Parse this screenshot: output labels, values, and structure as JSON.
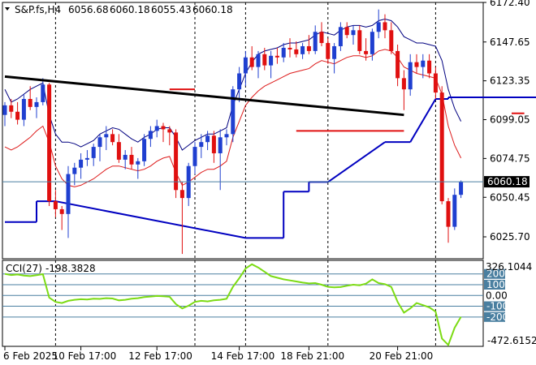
{
  "header": {
    "symbol": "S&P.fs,H4",
    "open": "6056.68",
    "high": "6060.18",
    "low": "6055.43",
    "close": "6060.18"
  },
  "indicator": {
    "name": "CCI(27)",
    "value": "-198.3828",
    "scale_max": "326.1044",
    "scale_min": "-472.6152",
    "levels": [
      "200",
      "100",
      "0.00",
      "-100",
      "-200"
    ]
  },
  "current_price_label": "6060.18",
  "colors": {
    "bull": "#1f3fd0",
    "bear": "#e01010",
    "band_upper": "#000080",
    "band_lower": "#dd1a1a",
    "trendline": "#000000",
    "support": "#0000c0",
    "cci_line": "#7cdb14",
    "cci_levels": "#4a7fa0"
  },
  "chart_data": {
    "type": "candlestick",
    "timeframe": "H4",
    "ylim": [
      6012,
      6172.4
    ],
    "y_ticks": [
      "6172.40",
      "6147.65",
      "6123.35",
      "6099.05",
      "6074.75",
      "6050.45",
      "6025.70"
    ],
    "x_tick_labels": [
      "6 Feb 2025",
      "10 Feb 17:00",
      "12 Feb 17:00",
      "14 Feb 17:00",
      "18 Feb 21:00",
      "20 Feb 21:00"
    ],
    "candles": [
      [
        6102,
        6110,
        6095,
        6108
      ],
      [
        6108,
        6112,
        6100,
        6104
      ],
      [
        6104,
        6110,
        6096,
        6099
      ],
      [
        6099,
        6115,
        6095,
        6112
      ],
      [
        6112,
        6120,
        6105,
        6107
      ],
      [
        6107,
        6113,
        6100,
        6110
      ],
      [
        6110,
        6125,
        6108,
        6121
      ],
      [
        6121,
        6122,
        6045,
        6048
      ],
      [
        6048,
        6055,
        6038,
        6043
      ],
      [
        6043,
        6045,
        6030,
        6040
      ],
      [
        6040,
        6070,
        6025,
        6065
      ],
      [
        6065,
        6072,
        6058,
        6069
      ],
      [
        6069,
        6078,
        6062,
        6074
      ],
      [
        6074,
        6080,
        6070,
        6075
      ],
      [
        6075,
        6084,
        6070,
        6082
      ],
      [
        6082,
        6090,
        6073,
        6088
      ],
      [
        6088,
        6095,
        6080,
        6090
      ],
      [
        6090,
        6093,
        6083,
        6085
      ],
      [
        6085,
        6090,
        6072,
        6074
      ],
      [
        6074,
        6080,
        6068,
        6077
      ],
      [
        6077,
        6082,
        6068,
        6071
      ],
      [
        6071,
        6075,
        6062,
        6073
      ],
      [
        6073,
        6090,
        6070,
        6087
      ],
      [
        6087,
        6095,
        6082,
        6092
      ],
      [
        6092,
        6099,
        6088,
        6095
      ],
      [
        6095,
        6097,
        6085,
        6093
      ],
      [
        6093,
        6095,
        6083,
        6091
      ],
      [
        6091,
        6093,
        6050,
        6055
      ],
      [
        6055,
        6060,
        6015,
        6050
      ],
      [
        6050,
        6072,
        6045,
        6070
      ],
      [
        6070,
        6085,
        6065,
        6082
      ],
      [
        6082,
        6090,
        6075,
        6085
      ],
      [
        6085,
        6092,
        6080,
        6089
      ],
      [
        6089,
        6092,
        6072,
        6078
      ],
      [
        6078,
        6093,
        6055,
        6088
      ],
      [
        6088,
        6093,
        6083,
        6090
      ],
      [
        6090,
        6120,
        6085,
        6118
      ],
      [
        6118,
        6132,
        6110,
        6128
      ],
      [
        6128,
        6142,
        6120,
        6138
      ],
      [
        6138,
        6145,
        6130,
        6132
      ],
      [
        6132,
        6142,
        6125,
        6140
      ],
      [
        6140,
        6144,
        6130,
        6133
      ],
      [
        6133,
        6142,
        6125,
        6139
      ],
      [
        6139,
        6144,
        6134,
        6138
      ],
      [
        6138,
        6147,
        6135,
        6144
      ],
      [
        6144,
        6150,
        6138,
        6143
      ],
      [
        6143,
        6148,
        6138,
        6140
      ],
      [
        6140,
        6147,
        6137,
        6145
      ],
      [
        6145,
        6152,
        6140,
        6142
      ],
      [
        6142,
        6158,
        6140,
        6154
      ],
      [
        6154,
        6160,
        6145,
        6147
      ],
      [
        6147,
        6150,
        6134,
        6137
      ],
      [
        6137,
        6147,
        6128,
        6145
      ],
      [
        6145,
        6160,
        6142,
        6157
      ],
      [
        6157,
        6160,
        6150,
        6152
      ],
      [
        6152,
        6158,
        6146,
        6155
      ],
      [
        6155,
        6158,
        6140,
        6142
      ],
      [
        6142,
        6150,
        6136,
        6140
      ],
      [
        6140,
        6156,
        6136,
        6154
      ],
      [
        6154,
        6168,
        6150,
        6160
      ],
      [
        6160,
        6165,
        6150,
        6155
      ],
      [
        6155,
        6160,
        6140,
        6142
      ],
      [
        6142,
        6146,
        6120,
        6125
      ],
      [
        6125,
        6130,
        6105,
        6118
      ],
      [
        6118,
        6140,
        6114,
        6135
      ],
      [
        6135,
        6140,
        6128,
        6132
      ],
      [
        6132,
        6140,
        6125,
        6136
      ],
      [
        6136,
        6140,
        6125,
        6128
      ],
      [
        6128,
        6132,
        6112,
        6116
      ],
      [
        6116,
        6120,
        6046,
        6048
      ],
      [
        6048,
        6050,
        6022,
        6032
      ],
      [
        6032,
        6056,
        6030,
        6052
      ],
      [
        6052,
        6061,
        6050,
        6060
      ]
    ],
    "band_upper": [
      6118,
      6110,
      6112,
      6115,
      6118,
      6120,
      6122,
      6102,
      6090,
      6085,
      6085,
      6084,
      6082,
      6084,
      6086,
      6090,
      6092,
      6094,
      6093,
      6090,
      6087,
      6085,
      6088,
      6090,
      6093,
      6094,
      6094,
      6088,
      6080,
      6083,
      6086,
      6088,
      6090,
      6090,
      6092,
      6094,
      6108,
      6118,
      6128,
      6135,
      6140,
      6142,
      6143,
      6144,
      6146,
      6147,
      6147,
      6148,
      6149,
      6152,
      6154,
      6153,
      6152,
      6155,
      6157,
      6158,
      6158,
      6157,
      6158,
      6161,
      6162,
      6161,
      6157,
      6151,
      6149,
      6147,
      6147,
      6146,
      6145,
      6136,
      6118,
      6106,
      6098
    ],
    "band_lower": [
      6082,
      6080,
      6082,
      6085,
      6088,
      6092,
      6095,
      6085,
      6070,
      6062,
      6058,
      6057,
      6058,
      6060,
      6062,
      6065,
      6068,
      6070,
      6070,
      6069,
      6068,
      6067,
      6068,
      6070,
      6073,
      6075,
      6076,
      6066,
      6058,
      6060,
      6063,
      6066,
      6068,
      6068,
      6070,
      6073,
      6088,
      6098,
      6108,
      6113,
      6117,
      6120,
      6122,
      6124,
      6126,
      6128,
      6129,
      6130,
      6131,
      6134,
      6136,
      6135,
      6134,
      6136,
      6138,
      6139,
      6139,
      6138,
      6139,
      6142,
      6143,
      6142,
      6138,
      6132,
      6130,
      6128,
      6127,
      6126,
      6125,
      6115,
      6095,
      6083,
      6075
    ],
    "support_levels": [
      {
        "from": 0,
        "to": 5,
        "value": 6035
      },
      {
        "from": 5,
        "to": 8,
        "value": 6048
      },
      {
        "from": 38,
        "to": 44,
        "value": 6025
      },
      {
        "from": 44,
        "to": 48,
        "value": 6054
      },
      {
        "from": 48,
        "to": 51,
        "value": 6060
      },
      {
        "from": 60,
        "to": 64,
        "value": 6085
      },
      {
        "from": 68,
        "to": 70,
        "value": 6112
      },
      {
        "from": 70,
        "to": 94,
        "value": 6113
      }
    ],
    "resistance_levels": [
      {
        "from": 26,
        "to": 30,
        "value": 6118
      },
      {
        "from": 46,
        "to": 63,
        "value": 6092
      },
      {
        "from": 80,
        "to": 82,
        "value": 6103
      }
    ],
    "trendline": {
      "from": [
        0,
        6126
      ],
      "to": [
        63,
        6102
      ]
    },
    "cci": [
      200,
      190,
      195,
      185,
      180,
      188,
      198,
      -20,
      -60,
      -70,
      -50,
      -40,
      -35,
      -38,
      -30,
      -32,
      -25,
      -28,
      -45,
      -40,
      -30,
      -25,
      -15,
      -10,
      -5,
      -8,
      -12,
      -80,
      -120,
      -95,
      -60,
      -50,
      -55,
      -45,
      -40,
      -30,
      80,
      160,
      250,
      290,
      260,
      220,
      180,
      165,
      150,
      140,
      130,
      120,
      112,
      115,
      100,
      80,
      75,
      78,
      90,
      100,
      95,
      110,
      150,
      115,
      105,
      80,
      -60,
      -160,
      -120,
      -70,
      -90,
      -110,
      -150,
      -400,
      -460,
      -300,
      -198
    ]
  }
}
